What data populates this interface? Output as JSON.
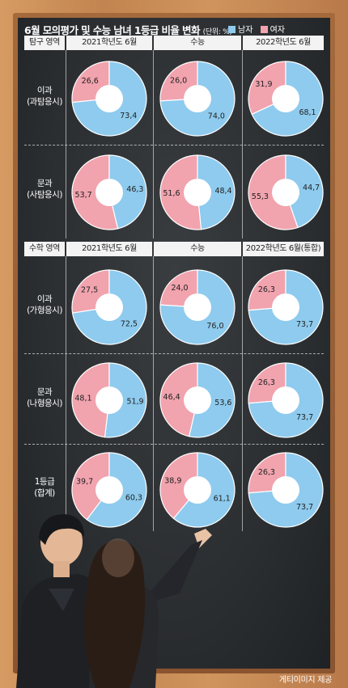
{
  "title": "6월 모의평가 및 수능 남녀 1등급 비율 변화",
  "unit": "(단위: %)",
  "legend": [
    {
      "name": "남자",
      "color": "#8ecbee"
    },
    {
      "name": "여자",
      "color": "#f1a3ae"
    }
  ],
  "colors": {
    "male": "#8ecbee",
    "female": "#f1a3ae",
    "center": "#ffffff"
  },
  "sections": [
    {
      "header": "탐구 영역",
      "columns": [
        "2021학년도 6월",
        "수능",
        "2022학년도 6월"
      ],
      "rows": [
        {
          "label1": "이과",
          "label2": "(과탐응시)"
        },
        {
          "label1": "문과",
          "label2": "(사탐응시)"
        }
      ]
    },
    {
      "header": "수학 영역",
      "columns": [
        "2021학년도 6월",
        "수능",
        "2022학년도 6월(통합)"
      ],
      "rows": [
        {
          "label1": "이과",
          "label2": "(가형응시)"
        },
        {
          "label1": "문과",
          "label2": "(나형응시)"
        },
        {
          "label1": "1등급",
          "label2": "(합계)"
        }
      ]
    }
  ],
  "chart_data": {
    "type": "pie",
    "title": "6월 모의평가 및 수능 남녀 1등급 비율 변화",
    "unit": "%",
    "series_names": [
      "남자",
      "여자"
    ],
    "charts": [
      {
        "section": "탐구 영역",
        "row": "이과(과탐응시)",
        "column": "2021학년도 6월",
        "male": 73.4,
        "female": 26.6,
        "male_label": "73,4",
        "female_label": "26,6"
      },
      {
        "section": "탐구 영역",
        "row": "이과(과탐응시)",
        "column": "수능",
        "male": 74.0,
        "female": 26.0,
        "male_label": "74,0",
        "female_label": "26,0"
      },
      {
        "section": "탐구 영역",
        "row": "이과(과탐응시)",
        "column": "2022학년도 6월",
        "male": 68.1,
        "female": 31.9,
        "male_label": "68,1",
        "female_label": "31,9"
      },
      {
        "section": "탐구 영역",
        "row": "문과(사탐응시)",
        "column": "2021학년도 6월",
        "male": 46.3,
        "female": 53.7,
        "male_label": "46,3",
        "female_label": "53,7"
      },
      {
        "section": "탐구 영역",
        "row": "문과(사탐응시)",
        "column": "수능",
        "male": 48.4,
        "female": 51.6,
        "male_label": "48,4",
        "female_label": "51,6"
      },
      {
        "section": "탐구 영역",
        "row": "문과(사탐응시)",
        "column": "2022학년도 6월",
        "male": 44.7,
        "female": 55.3,
        "male_label": "44,7",
        "female_label": "55,3"
      },
      {
        "section": "수학 영역",
        "row": "이과(가형응시)",
        "column": "2021학년도 6월",
        "male": 72.5,
        "female": 27.5,
        "male_label": "72,5",
        "female_label": "27,5"
      },
      {
        "section": "수학 영역",
        "row": "이과(가형응시)",
        "column": "수능",
        "male": 76.0,
        "female": 24.0,
        "male_label": "76,0",
        "female_label": "24,0"
      },
      {
        "section": "수학 영역",
        "row": "이과(가형응시)",
        "column": "2022학년도 6월(통합)",
        "male": 73.7,
        "female": 26.3,
        "male_label": "73,7",
        "female_label": "26,3"
      },
      {
        "section": "수학 영역",
        "row": "문과(나형응시)",
        "column": "2021학년도 6월",
        "male": 51.9,
        "female": 48.1,
        "male_label": "51,9",
        "female_label": "48,1"
      },
      {
        "section": "수학 영역",
        "row": "문과(나형응시)",
        "column": "수능",
        "male": 53.6,
        "female": 46.4,
        "male_label": "53,6",
        "female_label": "46,4"
      },
      {
        "section": "수학 영역",
        "row": "문과(나형응시)",
        "column": "2022학년도 6월(통합)",
        "male": 73.7,
        "female": 26.3,
        "male_label": "73,7",
        "female_label": "26,3"
      },
      {
        "section": "수학 영역",
        "row": "1등급(합계)",
        "column": "2021학년도 6월",
        "male": 60.3,
        "female": 39.7,
        "male_label": "60,3",
        "female_label": "39,7"
      },
      {
        "section": "수학 영역",
        "row": "1등급(합계)",
        "column": "수능",
        "male": 61.1,
        "female": 38.9,
        "male_label": "61,1",
        "female_label": "38,9"
      },
      {
        "section": "수학 영역",
        "row": "1등급(합계)",
        "column": "2022학년도 6월(통합)",
        "male": 73.7,
        "female": 26.3,
        "male_label": "73,7",
        "female_label": "26,3"
      }
    ]
  },
  "caption": "게티이미지 제공"
}
